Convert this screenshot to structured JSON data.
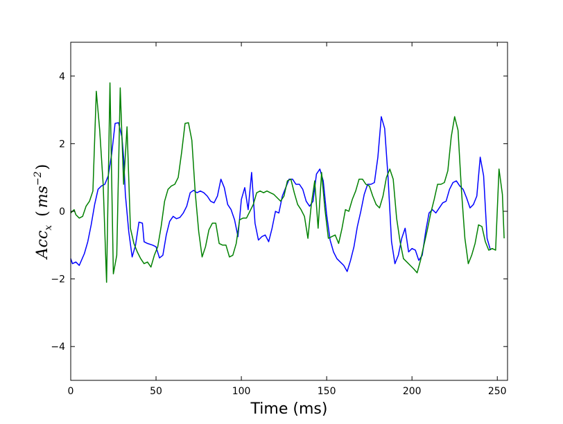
{
  "chart_data": {
    "type": "line",
    "title": "",
    "xlabel": "Time (ms)",
    "ylabel": {
      "main": "Acc",
      "sub": "x",
      "unit_open": "(",
      "unit_base": "ms",
      "unit_exp": "−2",
      "unit_close": ")"
    },
    "xlim": [
      0,
      256
    ],
    "ylim": [
      -5,
      5
    ],
    "xticks": [
      0,
      50,
      100,
      150,
      200,
      250
    ],
    "yticks": [
      -4,
      -2,
      0,
      2,
      4
    ],
    "grid": false,
    "legend": "none",
    "series": [
      {
        "color": "#0000ff",
        "points": [
          [
            0,
            -1.4
          ],
          [
            1,
            -1.55
          ],
          [
            3,
            -1.5
          ],
          [
            5,
            -1.6
          ],
          [
            8,
            -1.25
          ],
          [
            10,
            -0.9
          ],
          [
            12,
            -0.4
          ],
          [
            14,
            0.2
          ],
          [
            16,
            0.65
          ],
          [
            18,
            0.75
          ],
          [
            20,
            0.8
          ],
          [
            22,
            1.05
          ],
          [
            24,
            1.7
          ],
          [
            26,
            2.6
          ],
          [
            28,
            2.62
          ],
          [
            30,
            2.2
          ],
          [
            31,
            1.6
          ],
          [
            32,
            0.5
          ],
          [
            34,
            -0.6
          ],
          [
            36,
            -1.35
          ],
          [
            38,
            -1.0
          ],
          [
            40,
            -0.32
          ],
          [
            42,
            -0.35
          ],
          [
            43,
            -0.9
          ],
          [
            45,
            -0.95
          ],
          [
            48,
            -1.0
          ],
          [
            50,
            -1.05
          ],
          [
            52,
            -1.38
          ],
          [
            54,
            -1.3
          ],
          [
            56,
            -0.7
          ],
          [
            58,
            -0.3
          ],
          [
            60,
            -0.15
          ],
          [
            62,
            -0.22
          ],
          [
            64,
            -0.18
          ],
          [
            66,
            -0.05
          ],
          [
            68,
            0.15
          ],
          [
            70,
            0.55
          ],
          [
            72,
            0.62
          ],
          [
            74,
            0.55
          ],
          [
            76,
            0.6
          ],
          [
            78,
            0.55
          ],
          [
            80,
            0.45
          ],
          [
            82,
            0.3
          ],
          [
            84,
            0.25
          ],
          [
            86,
            0.45
          ],
          [
            88,
            0.95
          ],
          [
            90,
            0.7
          ],
          [
            92,
            0.2
          ],
          [
            94,
            0.05
          ],
          [
            96,
            -0.25
          ],
          [
            98,
            -0.75
          ],
          [
            100,
            0.35
          ],
          [
            102,
            0.7
          ],
          [
            104,
            0.05
          ],
          [
            106,
            1.15
          ],
          [
            108,
            -0.35
          ],
          [
            110,
            -0.85
          ],
          [
            112,
            -0.75
          ],
          [
            114,
            -0.7
          ],
          [
            116,
            -0.9
          ],
          [
            118,
            -0.5
          ],
          [
            120,
            0.0
          ],
          [
            122,
            -0.05
          ],
          [
            124,
            0.45
          ],
          [
            126,
            0.7
          ],
          [
            128,
            0.95
          ],
          [
            130,
            0.95
          ],
          [
            132,
            0.8
          ],
          [
            134,
            0.8
          ],
          [
            136,
            0.65
          ],
          [
            138,
            0.3
          ],
          [
            140,
            0.15
          ],
          [
            142,
            0.3
          ],
          [
            144,
            1.1
          ],
          [
            146,
            1.25
          ],
          [
            148,
            0.9
          ],
          [
            150,
            -0.1
          ],
          [
            152,
            -0.85
          ],
          [
            154,
            -1.2
          ],
          [
            156,
            -1.4
          ],
          [
            158,
            -1.5
          ],
          [
            160,
            -1.6
          ],
          [
            162,
            -1.78
          ],
          [
            164,
            -1.45
          ],
          [
            166,
            -1.05
          ],
          [
            168,
            -0.45
          ],
          [
            170,
            0.0
          ],
          [
            172,
            0.5
          ],
          [
            174,
            0.8
          ],
          [
            176,
            0.8
          ],
          [
            178,
            0.85
          ],
          [
            180,
            1.6
          ],
          [
            182,
            2.8
          ],
          [
            184,
            2.45
          ],
          [
            186,
            1.0
          ],
          [
            188,
            -0.9
          ],
          [
            190,
            -1.55
          ],
          [
            192,
            -1.3
          ],
          [
            194,
            -0.8
          ],
          [
            196,
            -0.5
          ],
          [
            198,
            -1.2
          ],
          [
            200,
            -1.1
          ],
          [
            202,
            -1.15
          ],
          [
            204,
            -1.45
          ],
          [
            206,
            -1.3
          ],
          [
            208,
            -0.6
          ],
          [
            210,
            -0.05
          ],
          [
            212,
            0.05
          ],
          [
            214,
            -0.05
          ],
          [
            216,
            0.1
          ],
          [
            218,
            0.25
          ],
          [
            220,
            0.3
          ],
          [
            222,
            0.65
          ],
          [
            224,
            0.85
          ],
          [
            226,
            0.9
          ],
          [
            228,
            0.75
          ],
          [
            230,
            0.65
          ],
          [
            232,
            0.4
          ],
          [
            234,
            0.1
          ],
          [
            236,
            0.2
          ],
          [
            238,
            0.45
          ],
          [
            240,
            1.6
          ],
          [
            242,
            1.05
          ],
          [
            244,
            -0.8
          ],
          [
            246,
            -1.15
          ]
        ]
      },
      {
        "color": "#008000",
        "points": [
          [
            0,
            -0.05
          ],
          [
            1,
            0.0
          ],
          [
            2,
            0.05
          ],
          [
            3,
            -0.1
          ],
          [
            5,
            -0.2
          ],
          [
            7,
            -0.15
          ],
          [
            9,
            0.15
          ],
          [
            11,
            0.3
          ],
          [
            13,
            0.6
          ],
          [
            15,
            3.55
          ],
          [
            17,
            2.4
          ],
          [
            19,
            0.8
          ],
          [
            21,
            -2.1
          ],
          [
            23,
            3.8
          ],
          [
            25,
            -1.85
          ],
          [
            27,
            -1.3
          ],
          [
            29,
            3.65
          ],
          [
            31,
            0.8
          ],
          [
            33,
            2.5
          ],
          [
            35,
            -0.5
          ],
          [
            37,
            -0.95
          ],
          [
            39,
            -1.2
          ],
          [
            41,
            -1.4
          ],
          [
            43,
            -1.55
          ],
          [
            45,
            -1.5
          ],
          [
            47,
            -1.65
          ],
          [
            49,
            -1.3
          ],
          [
            51,
            -1.05
          ],
          [
            53,
            -0.45
          ],
          [
            55,
            0.3
          ],
          [
            57,
            0.65
          ],
          [
            59,
            0.75
          ],
          [
            61,
            0.8
          ],
          [
            63,
            1.0
          ],
          [
            65,
            1.75
          ],
          [
            67,
            2.6
          ],
          [
            69,
            2.62
          ],
          [
            71,
            2.1
          ],
          [
            73,
            0.55
          ],
          [
            75,
            -0.6
          ],
          [
            77,
            -1.35
          ],
          [
            79,
            -1.05
          ],
          [
            81,
            -0.55
          ],
          [
            83,
            -0.35
          ],
          [
            85,
            -0.35
          ],
          [
            87,
            -0.95
          ],
          [
            89,
            -1.0
          ],
          [
            91,
            -1.0
          ],
          [
            93,
            -1.35
          ],
          [
            95,
            -1.3
          ],
          [
            97,
            -0.95
          ],
          [
            99,
            -0.25
          ],
          [
            101,
            -0.2
          ],
          [
            103,
            -0.2
          ],
          [
            105,
            0.0
          ],
          [
            107,
            0.2
          ],
          [
            109,
            0.55
          ],
          [
            111,
            0.6
          ],
          [
            113,
            0.55
          ],
          [
            115,
            0.6
          ],
          [
            117,
            0.55
          ],
          [
            119,
            0.5
          ],
          [
            121,
            0.4
          ],
          [
            123,
            0.3
          ],
          [
            125,
            0.45
          ],
          [
            127,
            0.9
          ],
          [
            129,
            0.95
          ],
          [
            131,
            0.55
          ],
          [
            133,
            0.2
          ],
          [
            135,
            0.05
          ],
          [
            137,
            -0.15
          ],
          [
            139,
            -0.8
          ],
          [
            141,
            0.2
          ],
          [
            143,
            0.9
          ],
          [
            145,
            -0.5
          ],
          [
            147,
            1.15
          ],
          [
            149,
            0.05
          ],
          [
            151,
            -0.8
          ],
          [
            153,
            -0.75
          ],
          [
            155,
            -0.7
          ],
          [
            157,
            -0.95
          ],
          [
            159,
            -0.5
          ],
          [
            161,
            0.05
          ],
          [
            163,
            0.0
          ],
          [
            165,
            0.35
          ],
          [
            167,
            0.6
          ],
          [
            169,
            0.95
          ],
          [
            171,
            0.95
          ],
          [
            173,
            0.8
          ],
          [
            175,
            0.75
          ],
          [
            177,
            0.45
          ],
          [
            179,
            0.2
          ],
          [
            181,
            0.1
          ],
          [
            183,
            0.45
          ],
          [
            185,
            1.0
          ],
          [
            187,
            1.25
          ],
          [
            189,
            0.95
          ],
          [
            191,
            -0.2
          ],
          [
            193,
            -0.9
          ],
          [
            195,
            -1.4
          ],
          [
            197,
            -1.5
          ],
          [
            199,
            -1.6
          ],
          [
            201,
            -1.7
          ],
          [
            203,
            -1.82
          ],
          [
            205,
            -1.45
          ],
          [
            207,
            -1.0
          ],
          [
            209,
            -0.55
          ],
          [
            211,
            -0.05
          ],
          [
            213,
            0.35
          ],
          [
            215,
            0.8
          ],
          [
            217,
            0.8
          ],
          [
            219,
            0.85
          ],
          [
            221,
            1.2
          ],
          [
            223,
            2.2
          ],
          [
            225,
            2.8
          ],
          [
            227,
            2.4
          ],
          [
            229,
            0.6
          ],
          [
            231,
            -0.8
          ],
          [
            233,
            -1.55
          ],
          [
            235,
            -1.3
          ],
          [
            237,
            -0.95
          ],
          [
            239,
            -0.4
          ],
          [
            241,
            -0.45
          ],
          [
            243,
            -0.9
          ],
          [
            245,
            -1.15
          ],
          [
            247,
            -1.1
          ],
          [
            249,
            -1.15
          ],
          [
            251,
            1.25
          ],
          [
            253,
            0.5
          ],
          [
            254,
            -0.8
          ]
        ]
      }
    ]
  }
}
